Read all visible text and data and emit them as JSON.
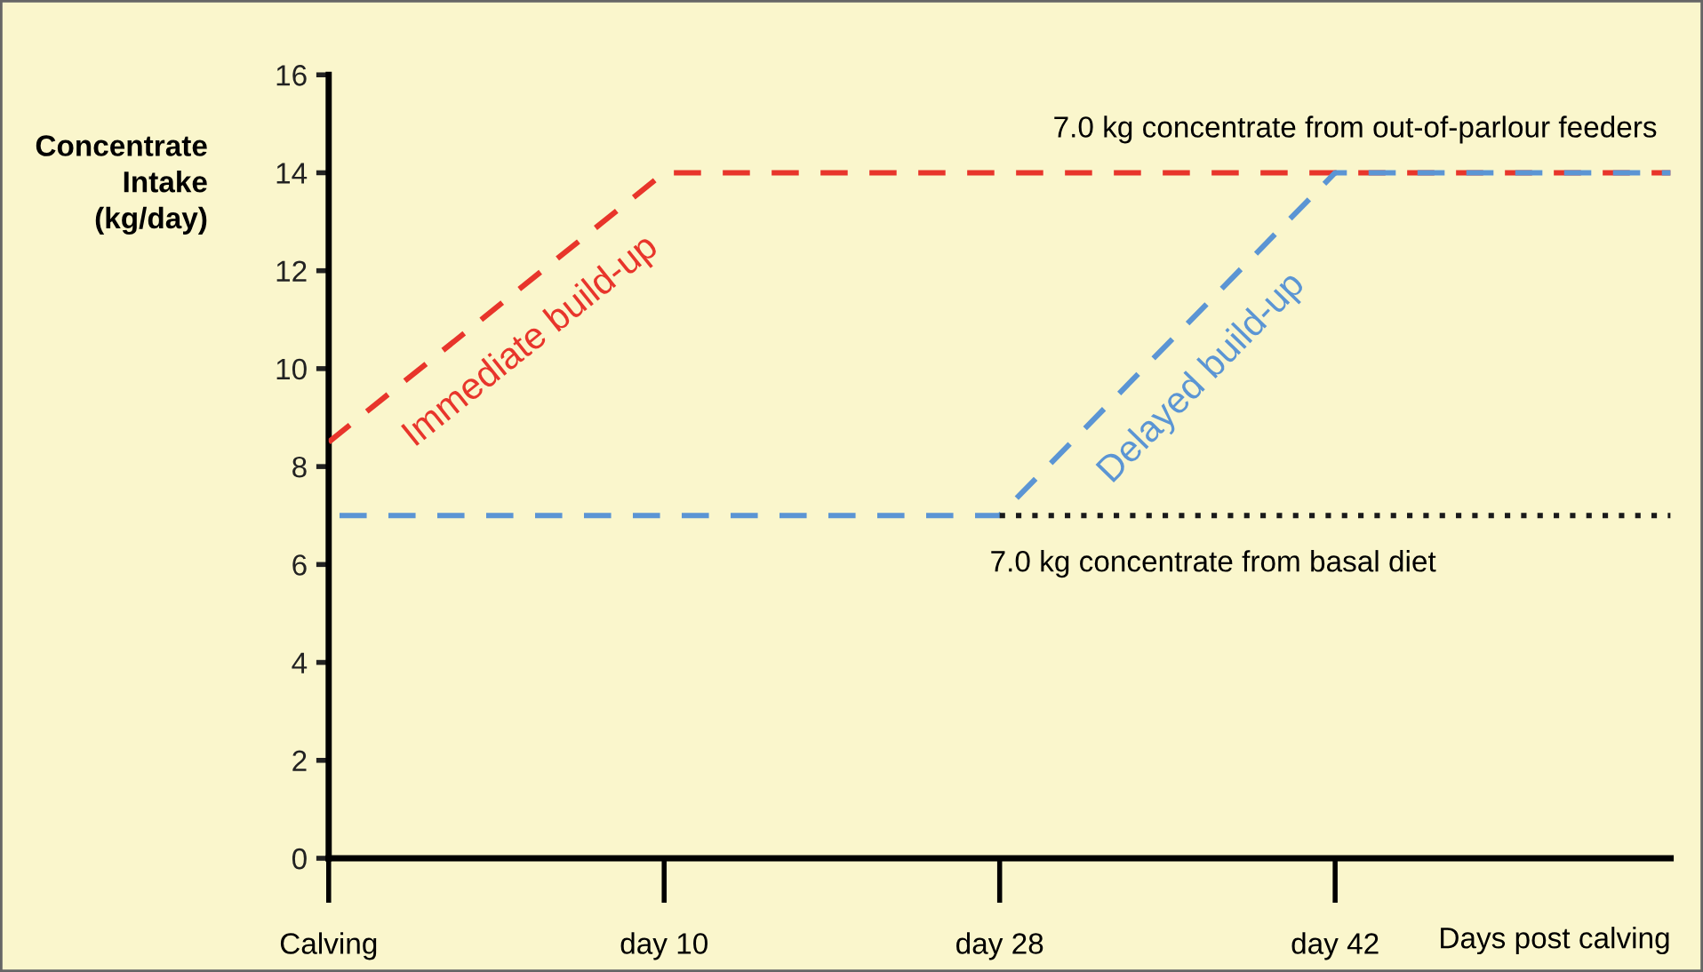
{
  "chart_data": {
    "type": "line",
    "ylabel": "Concentrate\nIntake\n(kg/day)",
    "xlabel": "Days post calving",
    "categories": [
      "Calving",
      "day 10",
      "day 28",
      "day 42",
      null
    ],
    "ylim": [
      0,
      16
    ],
    "yticks": [
      0,
      2,
      4,
      6,
      8,
      10,
      12,
      14,
      16
    ],
    "grid": false,
    "line_style": "dashed",
    "series": [
      {
        "name": "Immediate build-up",
        "color": "#e8352b",
        "values": [
          8.5,
          14,
          14,
          14,
          14
        ]
      },
      {
        "name": "Delayed build-up",
        "color": "#5b95d4",
        "values": [
          7,
          7,
          7,
          14,
          14
        ]
      },
      {
        "color": "#1a1a1a",
        "values": [
          null,
          null,
          7,
          7,
          7
        ],
        "line_style": "dotted"
      }
    ],
    "annotations": [
      "7.0 kg concentrate from out-of-parlour feeders",
      "7.0 kg concentrate from basal diet"
    ]
  }
}
